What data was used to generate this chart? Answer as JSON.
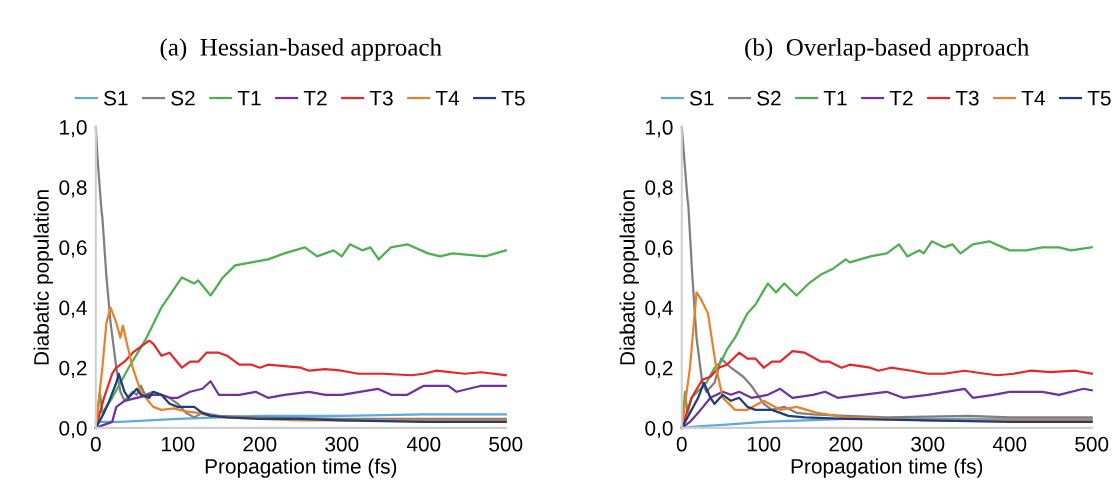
{
  "chart_data": [
    {
      "type": "line",
      "title": "(a)  Hessian-based approach",
      "xlabel": "Propagation time (fs)",
      "ylabel": "Diabatic population",
      "xlim": [
        0,
        500
      ],
      "xticks": [
        0,
        100,
        200,
        300,
        400,
        500
      ],
      "ylim": [
        0,
        1
      ],
      "yticks": [
        {
          "value": 0,
          "label": "0,0"
        },
        {
          "value": 0.2,
          "label": "0,2"
        },
        {
          "value": 0.4,
          "label": "0,4"
        },
        {
          "value": 0.6,
          "label": "0,6"
        },
        {
          "value": 0.8,
          "label": "0,8"
        },
        {
          "value": 1,
          "label": "1,0"
        }
      ],
      "grid": false,
      "legend": "top",
      "marker": "none",
      "line_style": "solid",
      "series": [
        {
          "name": "S1",
          "color": "#5aaae0",
          "x": [
            0,
            30,
            100,
            150,
            200,
            300,
            400,
            500
          ],
          "values": [
            0.02,
            0.02,
            0.03,
            0.035,
            0.04,
            0.04,
            0.045,
            0.045
          ]
        },
        {
          "name": "S2",
          "color": "#7f7f7f",
          "x": [
            0,
            2,
            7,
            8,
            13,
            18,
            25,
            30,
            35,
            45,
            50,
            55,
            60,
            70,
            80,
            90,
            100,
            110,
            120,
            130,
            150,
            200,
            300,
            500
          ],
          "values": [
            1.0,
            0.9,
            0.72,
            0.7,
            0.5,
            0.35,
            0.2,
            0.12,
            0.09,
            0.12,
            0.11,
            0.14,
            0.11,
            0.12,
            0.11,
            0.1,
            0.08,
            0.05,
            0.035,
            0.05,
            0.04,
            0.035,
            0.03,
            0.03
          ]
        },
        {
          "name": "T1",
          "color": "#4caf50",
          "x": [
            0,
            5,
            8,
            20,
            40,
            60,
            80,
            105,
            120,
            125,
            140,
            155,
            170,
            190,
            210,
            230,
            255,
            270,
            290,
            300,
            310,
            325,
            335,
            345,
            360,
            380,
            405,
            420,
            435,
            455,
            475,
            500
          ],
          "values": [
            0,
            0.12,
            0.05,
            0.1,
            0.2,
            0.29,
            0.4,
            0.5,
            0.48,
            0.49,
            0.44,
            0.5,
            0.54,
            0.55,
            0.56,
            0.58,
            0.6,
            0.57,
            0.59,
            0.57,
            0.61,
            0.59,
            0.6,
            0.56,
            0.6,
            0.61,
            0.58,
            0.57,
            0.58,
            0.575,
            0.57,
            0.59
          ]
        },
        {
          "name": "T2",
          "color": "#7030a0",
          "x": [
            0,
            10,
            20,
            25,
            35,
            50,
            65,
            80,
            90,
            100,
            115,
            130,
            140,
            150,
            175,
            195,
            210,
            230,
            260,
            280,
            300,
            344,
            360,
            380,
            400,
            430,
            440,
            470,
            500
          ],
          "values": [
            0,
            0.01,
            0.02,
            0.07,
            0.09,
            0.1,
            0.11,
            0.11,
            0.1,
            0.1,
            0.12,
            0.13,
            0.155,
            0.11,
            0.11,
            0.12,
            0.1,
            0.11,
            0.12,
            0.11,
            0.11,
            0.13,
            0.11,
            0.11,
            0.14,
            0.14,
            0.12,
            0.14,
            0.14
          ]
        },
        {
          "name": "T3",
          "color": "#e8262a",
          "x": [
            0,
            10,
            20,
            25,
            35,
            45,
            55,
            65,
            70,
            80,
            90,
            105,
            115,
            125,
            135,
            150,
            160,
            175,
            190,
            200,
            210,
            250,
            260,
            280,
            300,
            320,
            350,
            385,
            400,
            415,
            450,
            470,
            500
          ],
          "values": [
            0,
            0.1,
            0.18,
            0.2,
            0.22,
            0.25,
            0.27,
            0.29,
            0.28,
            0.24,
            0.25,
            0.2,
            0.22,
            0.22,
            0.25,
            0.25,
            0.24,
            0.21,
            0.21,
            0.2,
            0.21,
            0.2,
            0.19,
            0.195,
            0.19,
            0.18,
            0.18,
            0.175,
            0.18,
            0.19,
            0.18,
            0.185,
            0.175
          ]
        },
        {
          "name": "T4",
          "color": "#e8812a",
          "x": [
            0,
            8,
            13,
            18,
            25,
            30,
            33,
            38,
            45,
            55,
            70,
            80,
            95,
            110,
            125,
            140,
            160,
            200,
            250,
            500
          ],
          "values": [
            0,
            0.2,
            0.35,
            0.4,
            0.35,
            0.3,
            0.34,
            0.28,
            0.2,
            0.12,
            0.07,
            0.06,
            0.065,
            0.055,
            0.05,
            0.04,
            0.035,
            0.03,
            0.025,
            0.025
          ]
        },
        {
          "name": "T5",
          "color": "#1f3d7a",
          "x": [
            0,
            10,
            15,
            25,
            28,
            35,
            40,
            50,
            55,
            65,
            70,
            80,
            90,
            100,
            120,
            130,
            140,
            160,
            200,
            250,
            300,
            400,
            500
          ],
          "values": [
            0,
            0.05,
            0.08,
            0.15,
            0.18,
            0.12,
            0.1,
            0.13,
            0.11,
            0.1,
            0.12,
            0.11,
            0.08,
            0.07,
            0.07,
            0.05,
            0.04,
            0.035,
            0.03,
            0.03,
            0.025,
            0.02,
            0.02
          ]
        }
      ]
    },
    {
      "type": "line",
      "title": "(b)  Overlap-based approach",
      "xlabel": "Propagation time (fs)",
      "ylabel": "Diabatic population",
      "xlim": [
        0,
        500
      ],
      "xticks": [
        0,
        100,
        200,
        300,
        400,
        500
      ],
      "ylim": [
        0,
        1
      ],
      "yticks": [
        {
          "value": 0,
          "label": "0,0"
        },
        {
          "value": 0.2,
          "label": "0,2"
        },
        {
          "value": 0.4,
          "label": "0,4"
        },
        {
          "value": 0.6,
          "label": "0,6"
        },
        {
          "value": 0.8,
          "label": "0,8"
        },
        {
          "value": 1,
          "label": "1,0"
        }
      ],
      "grid": false,
      "legend": "top",
      "marker": "none",
      "line_style": "solid",
      "series": [
        {
          "name": "S1",
          "color": "#5aaae0",
          "x": [
            0,
            20,
            50,
            100,
            150,
            200,
            300,
            500
          ],
          "values": [
            0,
            0.005,
            0.01,
            0.02,
            0.025,
            0.03,
            0.03,
            0.03
          ]
        },
        {
          "name": "S2",
          "color": "#7f7f7f",
          "x": [
            0,
            7,
            8,
            13,
            18,
            25,
            30,
            40,
            48,
            60,
            75,
            85,
            100,
            110,
            125,
            140,
            160,
            200,
            250,
            350,
            400,
            500
          ],
          "values": [
            1.0,
            0.76,
            0.74,
            0.5,
            0.3,
            0.15,
            0.12,
            0.15,
            0.23,
            0.2,
            0.17,
            0.14,
            0.08,
            0.06,
            0.07,
            0.05,
            0.045,
            0.04,
            0.035,
            0.04,
            0.035,
            0.035
          ]
        },
        {
          "name": "T1",
          "color": "#4caf50",
          "x": [
            0,
            4,
            7,
            12,
            30,
            40,
            48,
            55,
            65,
            80,
            90,
            105,
            115,
            125,
            140,
            155,
            170,
            185,
            200,
            205,
            230,
            250,
            265,
            275,
            290,
            295,
            305,
            320,
            330,
            340,
            355,
            375,
            400,
            420,
            440,
            460,
            475,
            500
          ],
          "values": [
            0,
            0.12,
            0.05,
            0.1,
            0.15,
            0.2,
            0.22,
            0.26,
            0.3,
            0.38,
            0.41,
            0.48,
            0.45,
            0.48,
            0.44,
            0.48,
            0.51,
            0.53,
            0.56,
            0.55,
            0.57,
            0.58,
            0.61,
            0.57,
            0.59,
            0.58,
            0.62,
            0.6,
            0.61,
            0.58,
            0.61,
            0.62,
            0.59,
            0.59,
            0.6,
            0.6,
            0.59,
            0.6
          ]
        },
        {
          "name": "T2",
          "color": "#7030a0",
          "x": [
            0,
            10,
            20,
            35,
            50,
            60,
            70,
            85,
            105,
            120,
            135,
            160,
            175,
            190,
            220,
            250,
            270,
            300,
            345,
            355,
            380,
            400,
            440,
            460,
            490,
            500
          ],
          "values": [
            0,
            0.02,
            0.05,
            0.1,
            0.12,
            0.11,
            0.12,
            0.1,
            0.11,
            0.13,
            0.1,
            0.11,
            0.12,
            0.1,
            0.11,
            0.12,
            0.1,
            0.11,
            0.13,
            0.1,
            0.11,
            0.12,
            0.12,
            0.11,
            0.13,
            0.125
          ]
        },
        {
          "name": "T3",
          "color": "#e8262a",
          "x": [
            0,
            12,
            25,
            35,
            45,
            55,
            70,
            80,
            90,
            100,
            110,
            120,
            135,
            150,
            170,
            180,
            195,
            205,
            230,
            240,
            255,
            280,
            300,
            320,
            345,
            370,
            385,
            405,
            425,
            450,
            480,
            500
          ],
          "values": [
            0,
            0.1,
            0.16,
            0.17,
            0.2,
            0.21,
            0.25,
            0.23,
            0.23,
            0.2,
            0.22,
            0.22,
            0.255,
            0.25,
            0.22,
            0.22,
            0.2,
            0.21,
            0.2,
            0.19,
            0.2,
            0.19,
            0.18,
            0.18,
            0.19,
            0.18,
            0.175,
            0.18,
            0.19,
            0.185,
            0.19,
            0.18
          ]
        },
        {
          "name": "T4",
          "color": "#e8812a",
          "x": [
            0,
            10,
            18,
            23,
            32,
            42,
            50,
            65,
            80,
            100,
            120,
            140,
            165,
            200,
            250,
            300,
            500
          ],
          "values": [
            0,
            0.2,
            0.45,
            0.43,
            0.38,
            0.2,
            0.1,
            0.06,
            0.06,
            0.09,
            0.06,
            0.07,
            0.05,
            0.035,
            0.03,
            0.025,
            0.025
          ]
        },
        {
          "name": "T5",
          "color": "#1f3d7a",
          "x": [
            0,
            10,
            20,
            27,
            35,
            40,
            50,
            60,
            70,
            80,
            90,
            110,
            130,
            150,
            200,
            300,
            400,
            500
          ],
          "values": [
            0,
            0.05,
            0.1,
            0.15,
            0.1,
            0.08,
            0.11,
            0.09,
            0.1,
            0.07,
            0.06,
            0.06,
            0.04,
            0.035,
            0.03,
            0.025,
            0.02,
            0.02
          ]
        }
      ]
    }
  ]
}
